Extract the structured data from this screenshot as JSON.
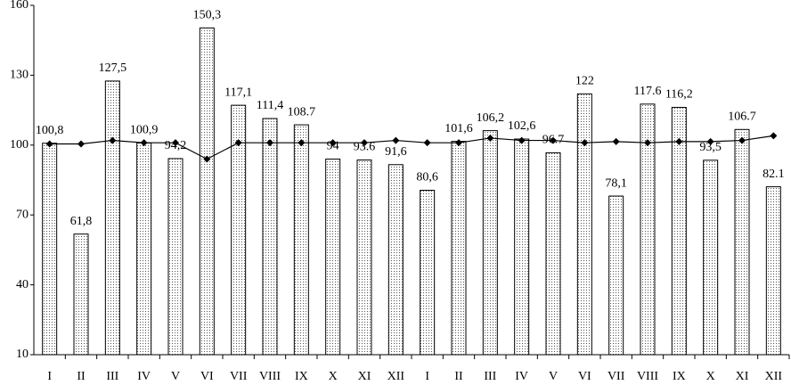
{
  "chart_data": {
    "type": "bar",
    "categories": [
      "I",
      "II",
      "III",
      "IV",
      "V",
      "VI",
      "VII",
      "VIII",
      "IX",
      "X",
      "XI",
      "XII",
      "I",
      "II",
      "III",
      "IV",
      "V",
      "VI",
      "VII",
      "VIII",
      "IX",
      "X",
      "XI",
      "XII"
    ],
    "series": [
      {
        "type": "bar",
        "color": "#000000",
        "values": [
          100.8,
          61.8,
          127.5,
          100.9,
          94.2,
          150.3,
          117.1,
          111.4,
          108.7,
          94,
          93.6,
          91.6,
          80.6,
          101.6,
          106.2,
          102.6,
          96.7,
          122,
          78.1,
          117.6,
          116.2,
          93.5,
          106.7,
          82.1
        ],
        "value_labels": [
          "100,8",
          "61,8",
          "127,5",
          "100,9",
          "94,2",
          "150,3",
          "117,1",
          "111,4",
          "108.7",
          "94",
          "93.6",
          "91,6",
          "80,6",
          "101,6",
          "106,2",
          "102,6",
          "96.7",
          "122",
          "78,1",
          "117.6",
          "116,2",
          "93,5",
          "106.7",
          "82.1"
        ]
      },
      {
        "type": "line",
        "color": "#000000",
        "values": [
          100.5,
          100.5,
          102,
          101,
          101,
          94,
          101,
          101,
          101,
          101,
          101,
          102,
          101,
          101,
          103,
          102,
          102,
          101,
          101.5,
          101,
          101.5,
          101.5,
          102,
          104
        ]
      }
    ],
    "ylim": [
      10,
      160
    ],
    "yticks": [
      10,
      40,
      70,
      100,
      130,
      160
    ]
  }
}
